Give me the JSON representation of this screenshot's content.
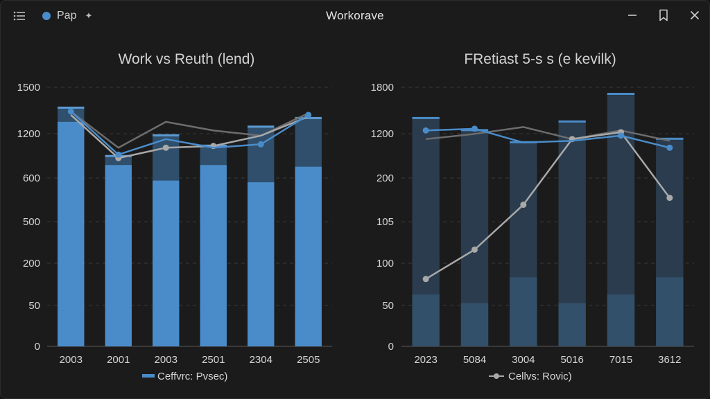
{
  "window": {
    "title": "Workorave",
    "tab_label": "Pap",
    "tab_pin": "✦",
    "icons": [
      "menu-icon",
      "minimize-icon",
      "bookmark-icon",
      "close-icon"
    ]
  },
  "colors": {
    "bar": "#4a8cc9",
    "line_blue": "#4a8cc9",
    "line_gray": "#a9a9a9",
    "line_dark": "#6d6d6d",
    "grid": "#3a3a3a",
    "text": "#d6d6d6"
  },
  "chart_data": [
    {
      "type": "bar",
      "title": "Work vs Reuth (lend)",
      "categories": [
        "2003",
        "2001",
        "2003",
        "2501",
        "2304",
        "2505"
      ],
      "y_ticks": [
        "1500",
        "1200",
        "600",
        "500",
        "200",
        "50",
        "0"
      ],
      "grid": true,
      "legend": {
        "position": "bottom",
        "entries": [
          {
            "label": "Ceffvrc: Pvsec)",
            "marker": "bar"
          }
        ]
      },
      "bars": {
        "total": [
          1380,
          1100,
          1220,
          1160,
          1270,
          1320
        ],
        "value": [
          1300,
          1050,
          960,
          1050,
          950,
          1040
        ],
        "style": "stacked"
      },
      "lines": [
        {
          "values": [
            1360,
            1150,
            1300,
            1250,
            1220,
            1350
          ],
          "style": "dark"
        },
        {
          "values": [
            1340,
            1090,
            1150,
            1160,
            1220,
            1330
          ],
          "style": "gray",
          "markers": [
            false,
            true,
            true,
            true,
            false,
            false
          ]
        },
        {
          "values": [
            1360,
            1110,
            1200,
            1150,
            1170,
            1340
          ],
          "style": "blue",
          "markers": [
            true,
            true,
            false,
            false,
            true,
            true
          ]
        }
      ]
    },
    {
      "type": "bar",
      "title": "FRetiast 5-s s (e kevilk)",
      "categories": [
        "2023",
        "5084",
        "3004",
        "5016",
        "7015",
        "3612"
      ],
      "y_ticks": [
        "1800",
        "1200",
        "200",
        "105",
        "100",
        "50",
        "0"
      ],
      "grid": true,
      "legend": {
        "position": "bottom",
        "entries": [
          {
            "label": "Cellvs: Rovic)",
            "marker": "line"
          }
        ]
      },
      "bars": {
        "total": [
          1320,
          1250,
          1180,
          1300,
          1460,
          1200
        ],
        "value": [
          300,
          250,
          400,
          250,
          300,
          400
        ],
        "style": "stacked-muted"
      },
      "lines": [
        {
          "values": [
            1200,
            1230,
            1270,
            1200,
            1250,
            1190
          ],
          "style": "dark"
        },
        {
          "values": [
            390,
            560,
            820,
            1200,
            1240,
            860
          ],
          "style": "gray",
          "markers": [
            true,
            true,
            true,
            true,
            true,
            true
          ]
        },
        {
          "values": [
            1250,
            1260,
            1180,
            1190,
            1220,
            1150
          ],
          "style": "blue",
          "markers": [
            true,
            true,
            false,
            false,
            true,
            true
          ]
        }
      ]
    }
  ]
}
